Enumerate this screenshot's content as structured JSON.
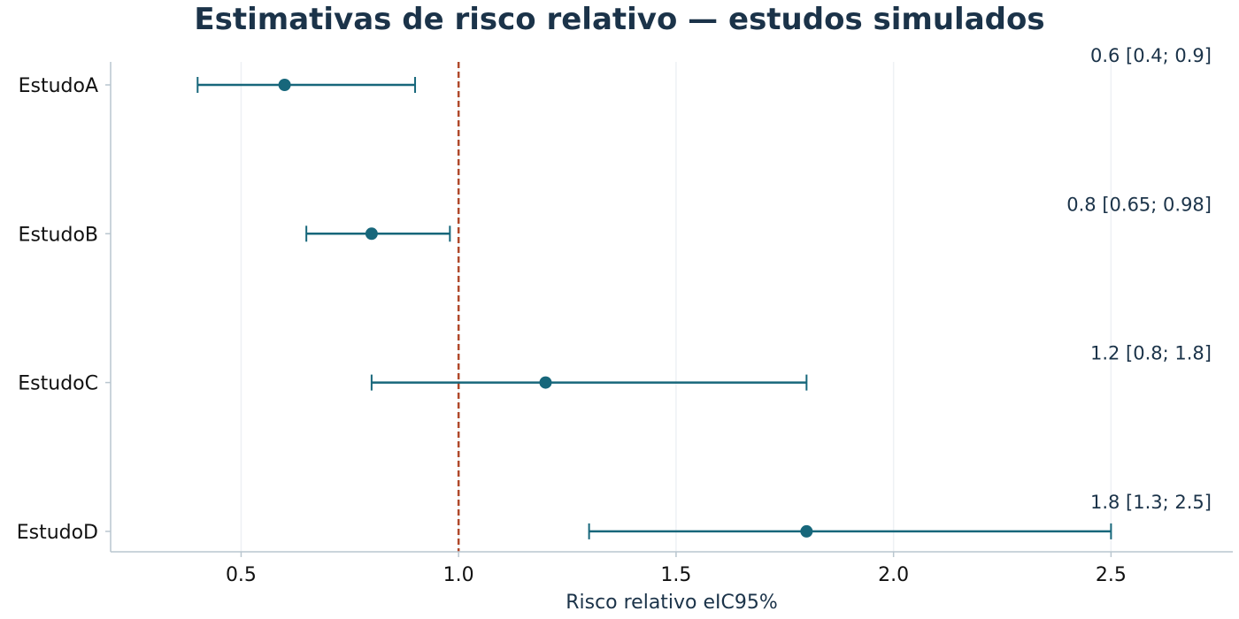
{
  "chart_data": {
    "type": "forest",
    "title": "Estimativas de risco relativo — estudos simulados",
    "xlabel": "Risco relativo eIC95%",
    "ylabel": "",
    "xlim": [
      0.2,
      2.78
    ],
    "xticks": [
      0.5,
      1.0,
      1.5,
      2.0,
      2.5
    ],
    "xtick_labels": [
      "0.5",
      "1.0",
      "1.5",
      "2.0",
      "2.5"
    ],
    "grid": "vertical",
    "reference_line": 1.0,
    "studies": [
      {
        "label": "EstudoA",
        "estimate": 0.6,
        "lower": 0.4,
        "upper": 0.9,
        "annotation": "0.6 [0.4; 0.9]"
      },
      {
        "label": "EstudoB",
        "estimate": 0.8,
        "lower": 0.65,
        "upper": 0.98,
        "annotation": "0.8 [0.65; 0.98]"
      },
      {
        "label": "EstudoC",
        "estimate": 1.2,
        "lower": 0.8,
        "upper": 1.8,
        "annotation": "1.2 [0.8; 1.8]"
      },
      {
        "label": "EstudoD",
        "estimate": 1.8,
        "lower": 1.3,
        "upper": 2.5,
        "annotation": "1.8 [1.3; 2.5]"
      }
    ],
    "colors": {
      "point": "#17677b",
      "ci": "#17677b",
      "reference": "#b0492b",
      "axis": "#b9c6cf",
      "grid": "#eef1f4",
      "title": "#1b3349"
    }
  }
}
